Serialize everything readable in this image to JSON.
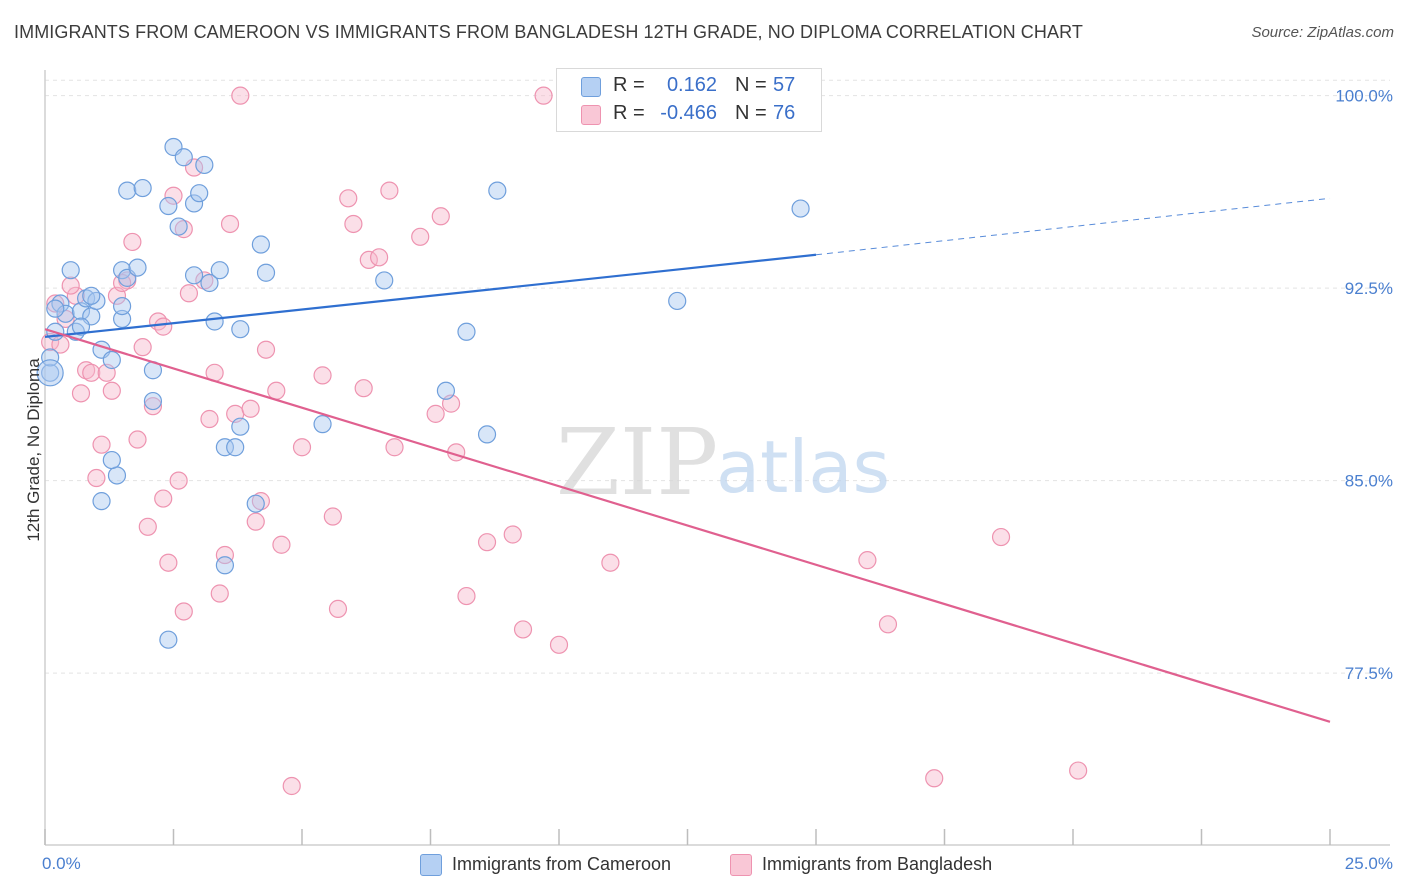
{
  "title": "IMMIGRANTS FROM CAMEROON VS IMMIGRANTS FROM BANGLADESH 12TH GRADE, NO DIPLOMA CORRELATION CHART",
  "source": "Source: ZipAtlas.com",
  "watermark": {
    "zip": "ZIP",
    "atlas": "atlas"
  },
  "colors": {
    "blue_fill": "#a9c8f0",
    "blue_stroke": "#6f9fdc",
    "blue_line": "#2f6fd0",
    "pink_fill": "#f6b8cb",
    "pink_stroke": "#ee93b0",
    "pink_line": "#e0608f",
    "tick_text": "#4a7fcf",
    "grid": "#e3e3e3"
  },
  "legend": {
    "rows": [
      {
        "r_label": "R =",
        "r_value": "0.162",
        "n_label": "N =",
        "n_value": "57"
      },
      {
        "r_label": "R =",
        "r_value": "-0.466",
        "n_label": "N =",
        "n_value": "76"
      }
    ]
  },
  "chart_data": {
    "type": "scatter",
    "xlabel": "",
    "ylabel": "12th Grade, No Diploma",
    "xlim": [
      0,
      25
    ],
    "ylim": [
      70.8,
      101
    ],
    "x_tick_labels": [
      "0.0%",
      "25.0%"
    ],
    "y_ticks": [
      77.5,
      85.0,
      92.5,
      100.0
    ],
    "y_tick_labels": [
      "77.5%",
      "85.0%",
      "92.5%",
      "100.0%"
    ],
    "grid": true,
    "legend_position": "bottom",
    "series": [
      {
        "name": "Immigrants from Cameroon",
        "color": "blue",
        "trend": {
          "x0": 0,
          "y0": 90.6,
          "x1": 15,
          "y1": 93.8,
          "dash_x1": 25,
          "dash_y1": 96.0
        },
        "points": [
          [
            0.1,
            89.2
          ],
          [
            0.2,
            90.8
          ],
          [
            0.3,
            91.9
          ],
          [
            0.4,
            91.5
          ],
          [
            0.5,
            93.2
          ],
          [
            0.6,
            90.8
          ],
          [
            0.7,
            91.6
          ],
          [
            0.8,
            92.1
          ],
          [
            0.9,
            91.4
          ],
          [
            1.0,
            92.0
          ],
          [
            1.1,
            90.1
          ],
          [
            1.3,
            89.7
          ],
          [
            1.5,
            91.3
          ],
          [
            1.4,
            85.2
          ],
          [
            1.5,
            93.2
          ],
          [
            1.6,
            92.9
          ],
          [
            1.6,
            96.3
          ],
          [
            1.8,
            93.3
          ],
          [
            1.9,
            96.4
          ],
          [
            2.1,
            89.3
          ],
          [
            2.1,
            88.1
          ],
          [
            2.4,
            95.7
          ],
          [
            2.5,
            98.0
          ],
          [
            2.6,
            94.9
          ],
          [
            2.7,
            97.6
          ],
          [
            2.9,
            95.8
          ],
          [
            3.0,
            96.2
          ],
          [
            3.1,
            97.3
          ],
          [
            3.2,
            92.7
          ],
          [
            3.3,
            91.2
          ],
          [
            3.4,
            93.2
          ],
          [
            3.5,
            81.7
          ],
          [
            3.5,
            86.3
          ],
          [
            3.7,
            86.3
          ],
          [
            3.8,
            90.9
          ],
          [
            3.8,
            87.1
          ],
          [
            4.1,
            84.1
          ],
          [
            4.2,
            94.2
          ],
          [
            4.3,
            93.1
          ],
          [
            5.4,
            87.2
          ],
          [
            6.6,
            92.8
          ],
          [
            7.8,
            88.5
          ],
          [
            8.2,
            90.8
          ],
          [
            8.6,
            86.8
          ],
          [
            8.8,
            96.3
          ],
          [
            11.6,
            100.6
          ],
          [
            14.7,
            95.6
          ],
          [
            12.3,
            92.0
          ],
          [
            2.4,
            78.8
          ],
          [
            1.1,
            84.2
          ],
          [
            1.3,
            85.8
          ],
          [
            0.2,
            91.7
          ],
          [
            0.7,
            91.0
          ],
          [
            0.1,
            89.8
          ],
          [
            1.5,
            91.8
          ],
          [
            0.9,
            92.2
          ],
          [
            2.9,
            93.0
          ]
        ]
      },
      {
        "name": "Immigrants from Bangladesh",
        "color": "pink",
        "trend": {
          "x0": 0,
          "y0": 90.9,
          "x1": 25,
          "y1": 75.6
        },
        "points": [
          [
            0.1,
            90.4
          ],
          [
            0.2,
            91.9
          ],
          [
            0.3,
            90.3
          ],
          [
            0.4,
            91.3
          ],
          [
            0.6,
            92.2
          ],
          [
            0.7,
            88.4
          ],
          [
            0.8,
            89.3
          ],
          [
            0.9,
            89.2
          ],
          [
            1.0,
            85.1
          ],
          [
            1.1,
            86.4
          ],
          [
            1.3,
            88.5
          ],
          [
            1.4,
            92.2
          ],
          [
            1.6,
            92.8
          ],
          [
            1.7,
            94.3
          ],
          [
            1.8,
            86.6
          ],
          [
            1.9,
            90.2
          ],
          [
            2.0,
            83.2
          ],
          [
            2.1,
            87.9
          ],
          [
            2.2,
            91.2
          ],
          [
            2.3,
            84.3
          ],
          [
            2.4,
            81.8
          ],
          [
            2.5,
            96.1
          ],
          [
            2.6,
            85.0
          ],
          [
            2.7,
            79.9
          ],
          [
            2.7,
            94.8
          ],
          [
            2.8,
            92.3
          ],
          [
            2.9,
            97.2
          ],
          [
            3.1,
            92.8
          ],
          [
            3.2,
            87.4
          ],
          [
            3.3,
            89.2
          ],
          [
            3.4,
            80.6
          ],
          [
            3.5,
            82.1
          ],
          [
            3.6,
            95.0
          ],
          [
            3.7,
            87.6
          ],
          [
            3.8,
            100.0
          ],
          [
            4.0,
            87.8
          ],
          [
            4.1,
            83.4
          ],
          [
            4.2,
            84.2
          ],
          [
            4.3,
            90.1
          ],
          [
            4.5,
            88.5
          ],
          [
            4.6,
            82.5
          ],
          [
            4.8,
            73.1
          ],
          [
            5.0,
            86.3
          ],
          [
            5.4,
            89.1
          ],
          [
            5.6,
            83.6
          ],
          [
            5.7,
            80.0
          ],
          [
            5.9,
            96.0
          ],
          [
            6.0,
            95.0
          ],
          [
            6.2,
            88.6
          ],
          [
            6.3,
            93.6
          ],
          [
            6.5,
            93.7
          ],
          [
            6.7,
            96.3
          ],
          [
            6.8,
            86.3
          ],
          [
            7.3,
            94.5
          ],
          [
            7.6,
            87.6
          ],
          [
            7.7,
            95.3
          ],
          [
            7.9,
            88.0
          ],
          [
            8.0,
            86.1
          ],
          [
            8.2,
            80.5
          ],
          [
            8.6,
            82.6
          ],
          [
            9.1,
            82.9
          ],
          [
            9.3,
            79.2
          ],
          [
            9.7,
            100.0
          ],
          [
            10.0,
            78.6
          ],
          [
            11.0,
            81.8
          ],
          [
            11.6,
            100.6
          ],
          [
            13.2,
            100.0
          ],
          [
            16.0,
            81.9
          ],
          [
            16.4,
            79.4
          ],
          [
            17.3,
            73.4
          ],
          [
            18.6,
            82.8
          ],
          [
            20.1,
            73.7
          ],
          [
            1.2,
            89.2
          ],
          [
            0.5,
            92.6
          ],
          [
            2.3,
            91.0
          ],
          [
            1.5,
            92.7
          ]
        ]
      }
    ]
  },
  "bottom_legend": [
    {
      "label": "Immigrants from Cameroon"
    },
    {
      "label": "Immigrants from Bangladesh"
    }
  ]
}
